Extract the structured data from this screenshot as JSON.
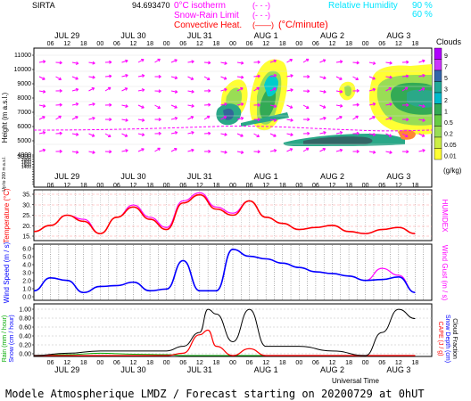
{
  "header": {
    "site": "SIRTA",
    "site_alt": "94.693470",
    "legend_left": [
      {
        "label": "0°C isotherm",
        "style": "(- - -)",
        "color": "#ff00ff"
      },
      {
        "label": "Snow-Rain Limit",
        "style": "(- - -)",
        "color": "#ff00ff"
      },
      {
        "label": "Convective Heat.",
        "style": "(——)",
        "suffix": "(°C/minute)",
        "color": "#ff0000"
      }
    ],
    "legend_right": {
      "title": "Relative Humidity",
      "values": [
        "90 %",
        "60 %"
      ],
      "color": "#00e5ff"
    }
  },
  "footer": {
    "text": "Modele Atmospherique LMDZ / Forecast starting on 20200729 at 0hUT"
  },
  "time_axis": {
    "hours": [
      "06",
      "12",
      "18",
      "00",
      "06",
      "12",
      "18",
      "00",
      "06",
      "12",
      "18",
      "00",
      "06",
      "12",
      "18",
      "00",
      "06",
      "12",
      "18",
      "00",
      "06",
      "12",
      "18"
    ],
    "days": [
      "JUL 29",
      "JUL 30",
      "JUL 31",
      "AUG 1",
      "AUG 2",
      "AUG 3"
    ],
    "xlabel": "Universal Time"
  },
  "panels": {
    "clouds": {
      "ylabel": "Height (m a.s.l.)",
      "yticks": [
        "11000",
        "10000",
        "9000",
        "8000",
        "7000",
        "6000",
        "5000",
        "4000",
        "3000",
        "2000",
        "1800",
        "1600",
        "1400",
        "1200",
        "1000",
        "800",
        "600",
        "400",
        "200",
        "100"
      ],
      "low_label": "Up to 200 m a.s.l.",
      "colorbar": {
        "title": "Clouds",
        "unit": "(g/kg)",
        "ticks": [
          "9",
          "7",
          "5",
          "3",
          "2",
          "1",
          "0.5",
          "0.2",
          "0.05",
          "0.01"
        ]
      }
    },
    "temperature": {
      "ylabel": "Temperature (°C)",
      "right_label": "HUMIDEX",
      "yticks": [
        "35.",
        "30.",
        "25.",
        "20.",
        "15."
      ]
    },
    "wind": {
      "ylabel": "Wind Speed (m / s)",
      "right_label": "Wind Gust (m / s)",
      "yticks": [
        "6.0",
        "5.0",
        "4.0",
        "3.0",
        "2.0",
        "1.0",
        "0.0"
      ]
    },
    "precip": {
      "ylabel_left": "Rain (mm / hour)",
      "ylabel_left2": "Snow (cm / hour)",
      "ylabel_right": "CAPE (J / g)",
      "ylabel_right2": "Snow Depth (cm)",
      "ylabel_right3": "Cloud Fraction",
      "yticks": [
        "1.00",
        "0.80",
        "0.60",
        "0.40",
        "0.20",
        "0.00"
      ]
    }
  },
  "chart_data": [
    {
      "type": "heatmap",
      "title": "Clouds",
      "ylabel": "Height (m a.s.l.)",
      "x_start": "2020-07-29 00UT",
      "x_end": "2020-08-03 21UT",
      "legend": "right",
      "colorbar_unit": "g/kg"
    },
    {
      "type": "line",
      "ylabel": "Temperature (°C)",
      "ylim": [
        13,
        37
      ],
      "x_hours": [
        0,
        6,
        12,
        18,
        24,
        30,
        36,
        42,
        48,
        54,
        60,
        66,
        72,
        78,
        84,
        90,
        96,
        102,
        108,
        114,
        120,
        126,
        132,
        138
      ],
      "series": [
        {
          "name": "Temperature",
          "color": "#ff0000",
          "values": [
            17,
            20,
            25,
            22,
            16,
            24,
            29,
            23,
            18,
            31,
            35,
            28,
            25,
            32,
            24,
            21,
            18,
            19,
            20,
            17,
            16,
            18,
            19,
            16
          ]
        },
        {
          "name": "HUMIDEX",
          "color": "#ff00ff",
          "values": [
            17,
            20,
            25,
            23,
            16,
            24,
            30,
            24,
            19,
            32,
            36,
            29,
            26,
            32,
            24,
            21,
            18,
            19,
            20,
            17,
            16,
            18,
            19,
            16
          ]
        }
      ]
    },
    {
      "type": "line",
      "ylabel": "Wind Speed (m / s)",
      "ylim": [
        0,
        6.3
      ],
      "x_hours": [
        0,
        6,
        12,
        18,
        24,
        30,
        36,
        42,
        48,
        54,
        60,
        66,
        72,
        78,
        84,
        90,
        96,
        102,
        108,
        114,
        120,
        126,
        132,
        138
      ],
      "series": [
        {
          "name": "Wind Speed",
          "color": "#0000ff",
          "values": [
            1.0,
            2.5,
            2.2,
            0.8,
            1.5,
            1.6,
            2.0,
            1.0,
            1.2,
            4.5,
            1.0,
            1.0,
            5.8,
            5.0,
            4.7,
            4.2,
            3.7,
            3.2,
            3.0,
            2.7,
            2.2,
            2.3,
            2.6,
            0.8
          ]
        },
        {
          "name": "Wind Gust",
          "color": "#ff00ff",
          "values": [
            1.0,
            2.5,
            2.2,
            0.8,
            1.5,
            1.6,
            2.0,
            1.0,
            1.2,
            4.5,
            1.0,
            1.0,
            5.8,
            5.0,
            4.7,
            4.2,
            3.7,
            3.2,
            3.0,
            2.7,
            2.2,
            3.6,
            2.8,
            0.8
          ]
        }
      ]
    },
    {
      "type": "line",
      "ylim": [
        0,
        1.1
      ],
      "x_hours": [
        0,
        12,
        24,
        36,
        48,
        54,
        60,
        63,
        66,
        72,
        78,
        84,
        96,
        108,
        120,
        126,
        132,
        138
      ],
      "series": [
        {
          "name": "Rain",
          "color": "#00aa00",
          "values": [
            0.0,
            0.02,
            0.05,
            0.03,
            0.02,
            0.0,
            0.0,
            0.0,
            0.0,
            0.0,
            0.0,
            0.0,
            0.0,
            0.0,
            0.0,
            0.0,
            0.0,
            0.0
          ]
        },
        {
          "name": "CAPE",
          "color": "#ff0000",
          "values": [
            0.0,
            0.0,
            0.0,
            0.0,
            0.0,
            0.05,
            0.45,
            0.55,
            0.2,
            0.0,
            0.15,
            0.0,
            0.0,
            0.0,
            0.0,
            0.0,
            0.0,
            0.0
          ]
        },
        {
          "name": "Cloud Fraction",
          "color": "#000000",
          "values": [
            0.0,
            0.05,
            0.1,
            0.1,
            0.1,
            0.2,
            0.5,
            1.0,
            0.9,
            0.3,
            1.0,
            0.2,
            0.2,
            0.1,
            0.0,
            0.5,
            1.0,
            0.8
          ]
        }
      ]
    }
  ]
}
